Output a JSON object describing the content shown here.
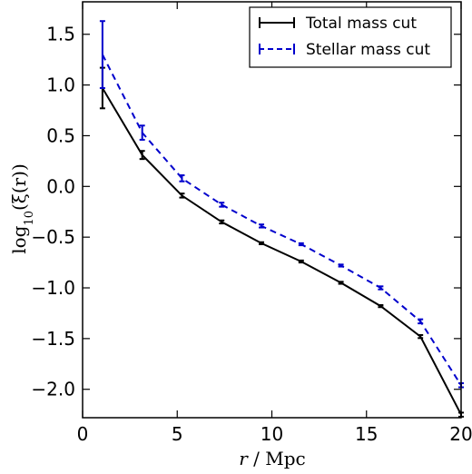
{
  "chart_data": {
    "type": "line",
    "xlabel": "r / Mpc",
    "ylabel": "log10(ξ(r))",
    "xlim": [
      0,
      20
    ],
    "ylim": [
      -2.28,
      1.82
    ],
    "xticks": [
      0,
      5,
      10,
      15,
      20
    ],
    "yticks": [
      -2.0,
      -1.5,
      -1.0,
      -0.5,
      0.0,
      0.5,
      1.0,
      1.5
    ],
    "xtick_labels": [
      "0",
      "5",
      "10",
      "15",
      "20"
    ],
    "ytick_labels": [
      "−2.0",
      "−1.5",
      "−1.0",
      "−0.5",
      "0.0",
      "0.5",
      "1.0",
      "1.5"
    ],
    "legend_position": "top-right",
    "grid": false,
    "series": [
      {
        "name": "Total mass cut",
        "color": "#000000",
        "dashed": false,
        "x": [
          1.05,
          3.15,
          5.25,
          7.35,
          9.45,
          11.55,
          13.65,
          15.75,
          17.85,
          20.0
        ],
        "y": [
          0.97,
          0.31,
          -0.09,
          -0.35,
          -0.56,
          -0.74,
          -0.95,
          -1.18,
          -1.48,
          -2.25
        ],
        "err": [
          0.2,
          0.04,
          0.02,
          0.015,
          0.01,
          0.01,
          0.01,
          0.01,
          0.015,
          0.02
        ]
      },
      {
        "name": "Stellar mass cut",
        "color": "#0000cc",
        "dashed": true,
        "x": [
          1.05,
          3.15,
          5.25,
          7.35,
          9.45,
          11.55,
          13.65,
          15.75,
          17.85,
          20.0
        ],
        "y": [
          1.3,
          0.53,
          0.08,
          -0.18,
          -0.39,
          -0.57,
          -0.78,
          -1.0,
          -1.33,
          -1.96
        ],
        "err": [
          0.33,
          0.07,
          0.03,
          0.02,
          0.015,
          0.01,
          0.01,
          0.015,
          0.02,
          0.02
        ]
      }
    ]
  }
}
